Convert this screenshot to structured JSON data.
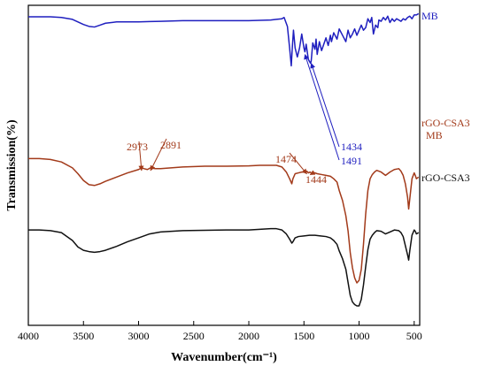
{
  "chart_data": {
    "type": "line",
    "title": "",
    "xlabel": "Wavenumber(cm⁻¹)",
    "ylabel": "Transmission(%)",
    "xlim": [
      4000,
      450
    ],
    "x_reversed": true,
    "xticks": [
      4000,
      3500,
      3000,
      2500,
      2000,
      1500,
      1000,
      500
    ],
    "ylim": [
      0,
      1
    ],
    "yticks_shown": false,
    "grid": false,
    "legend": "none",
    "series": [
      {
        "name": "MB",
        "color": "#1f1fbf",
        "x": [
          4000,
          3800,
          3700,
          3600,
          3500,
          3450,
          3400,
          3350,
          3300,
          3200,
          3100,
          3000,
          2900,
          2800,
          2600,
          2400,
          2200,
          2000,
          1800,
          1750,
          1700,
          1680,
          1650,
          1630,
          1615,
          1605,
          1595,
          1580,
          1560,
          1540,
          1520,
          1500,
          1491,
          1480,
          1460,
          1440,
          1434,
          1420,
          1400,
          1390,
          1380,
          1360,
          1340,
          1320,
          1300,
          1280,
          1260,
          1250,
          1230,
          1200,
          1180,
          1150,
          1120,
          1100,
          1080,
          1060,
          1040,
          1020,
          1000,
          980,
          960,
          940,
          920,
          900,
          885,
          870,
          850,
          830,
          820,
          800,
          780,
          760,
          740,
          720,
          700,
          680,
          660,
          640,
          620,
          600,
          580,
          560,
          540,
          520,
          500,
          480,
          460
        ],
        "y": [
          0.965,
          0.965,
          0.96,
          0.945,
          0.905,
          0.89,
          0.885,
          0.9,
          0.915,
          0.925,
          0.925,
          0.925,
          0.928,
          0.93,
          0.935,
          0.935,
          0.935,
          0.935,
          0.94,
          0.945,
          0.95,
          0.96,
          0.89,
          0.72,
          0.58,
          0.73,
          0.86,
          0.72,
          0.65,
          0.72,
          0.83,
          0.72,
          0.69,
          0.75,
          0.63,
          0.6,
          0.62,
          0.76,
          0.71,
          0.79,
          0.67,
          0.77,
          0.7,
          0.75,
          0.8,
          0.74,
          0.82,
          0.77,
          0.84,
          0.79,
          0.87,
          0.82,
          0.77,
          0.86,
          0.8,
          0.83,
          0.87,
          0.82,
          0.86,
          0.9,
          0.86,
          0.88,
          0.95,
          0.92,
          0.96,
          0.83,
          0.9,
          0.88,
          0.94,
          0.93,
          0.96,
          0.94,
          0.97,
          0.92,
          0.95,
          0.93,
          0.95,
          0.94,
          0.93,
          0.95,
          0.94,
          0.96,
          0.97,
          0.95,
          0.98,
          0.98,
          0.99
        ]
      },
      {
        "name": "rGO-CSA3\nMB",
        "color": "#a23a1a",
        "x": [
          4000,
          3900,
          3800,
          3700,
          3600,
          3550,
          3500,
          3450,
          3400,
          3350,
          3300,
          3200,
          3100,
          3000,
          2973,
          2950,
          2920,
          2891,
          2850,
          2800,
          2600,
          2400,
          2200,
          2000,
          1900,
          1800,
          1750,
          1700,
          1660,
          1630,
          1610,
          1600,
          1580,
          1550,
          1520,
          1500,
          1474,
          1460,
          1444,
          1430,
          1400,
          1380,
          1340,
          1300,
          1260,
          1230,
          1200,
          1180,
          1150,
          1120,
          1100,
          1080,
          1060,
          1040,
          1020,
          1000,
          980,
          960,
          940,
          920,
          900,
          880,
          860,
          840,
          800,
          760,
          720,
          680,
          640,
          620,
          600,
          580,
          560,
          550,
          540,
          520,
          500,
          490,
          480,
          460
        ],
        "y": [
          0.74,
          0.74,
          0.735,
          0.72,
          0.685,
          0.65,
          0.61,
          0.585,
          0.58,
          0.59,
          0.605,
          0.63,
          0.655,
          0.675,
          0.685,
          0.68,
          0.675,
          0.685,
          0.68,
          0.68,
          0.69,
          0.695,
          0.695,
          0.697,
          0.7,
          0.7,
          0.7,
          0.69,
          0.66,
          0.62,
          0.59,
          0.62,
          0.65,
          0.655,
          0.66,
          0.66,
          0.665,
          0.655,
          0.66,
          0.652,
          0.655,
          0.65,
          0.645,
          0.64,
          0.635,
          0.62,
          0.6,
          0.55,
          0.49,
          0.4,
          0.31,
          0.18,
          0.09,
          0.03,
          0.0,
          0.015,
          0.08,
          0.23,
          0.41,
          0.55,
          0.62,
          0.645,
          0.66,
          0.67,
          0.66,
          0.64,
          0.66,
          0.675,
          0.68,
          0.665,
          0.64,
          0.59,
          0.51,
          0.44,
          0.5,
          0.62,
          0.655,
          0.64,
          0.62,
          0.63
        ]
      },
      {
        "name": "rGO-CSA3",
        "color": "#111111",
        "x": [
          4000,
          3900,
          3800,
          3700,
          3600,
          3550,
          3500,
          3450,
          3400,
          3350,
          3300,
          3200,
          3100,
          3000,
          2900,
          2800,
          2600,
          2400,
          2200,
          2000,
          1900,
          1800,
          1750,
          1700,
          1660,
          1630,
          1610,
          1600,
          1580,
          1550,
          1500,
          1450,
          1400,
          1350,
          1300,
          1260,
          1230,
          1200,
          1180,
          1150,
          1120,
          1100,
          1080,
          1060,
          1040,
          1020,
          1000,
          980,
          960,
          940,
          920,
          900,
          880,
          860,
          840,
          800,
          760,
          720,
          680,
          640,
          620,
          600,
          580,
          560,
          550,
          540,
          520,
          500,
          490,
          480,
          460
        ],
        "y": [
          0.58,
          0.58,
          0.575,
          0.56,
          0.5,
          0.45,
          0.425,
          0.415,
          0.41,
          0.415,
          0.425,
          0.455,
          0.49,
          0.52,
          0.55,
          0.565,
          0.575,
          0.578,
          0.58,
          0.58,
          0.585,
          0.59,
          0.59,
          0.58,
          0.55,
          0.51,
          0.48,
          0.49,
          0.52,
          0.53,
          0.535,
          0.54,
          0.54,
          0.535,
          0.53,
          0.52,
          0.5,
          0.47,
          0.42,
          0.36,
          0.28,
          0.18,
          0.08,
          0.03,
          0.01,
          0.0,
          0.0,
          0.05,
          0.16,
          0.3,
          0.43,
          0.51,
          0.54,
          0.56,
          0.575,
          0.57,
          0.55,
          0.565,
          0.58,
          0.575,
          0.56,
          0.53,
          0.46,
          0.39,
          0.35,
          0.42,
          0.54,
          0.58,
          0.57,
          0.55,
          0.56
        ]
      }
    ],
    "annotations": [
      {
        "text": "2973",
        "color": "#a23a1a",
        "target_x": 2973,
        "target_series": "rGO-CSA3\nMB"
      },
      {
        "text": "2891",
        "color": "#a23a1a",
        "target_x": 2891,
        "target_series": "rGO-CSA3\nMB"
      },
      {
        "text": "1474",
        "color": "#a23a1a",
        "target_x": 1474,
        "target_series": "rGO-CSA3\nMB"
      },
      {
        "text": "1444",
        "color": "#a23a1a",
        "target_x": 1444,
        "target_series": "rGO-CSA3\nMB"
      },
      {
        "text": "1434",
        "color": "#1f1fbf",
        "target_x": 1434,
        "target_series": "MB"
      },
      {
        "text": "1491",
        "color": "#1f1fbf",
        "target_x": 1491,
        "target_series": "MB"
      }
    ]
  }
}
